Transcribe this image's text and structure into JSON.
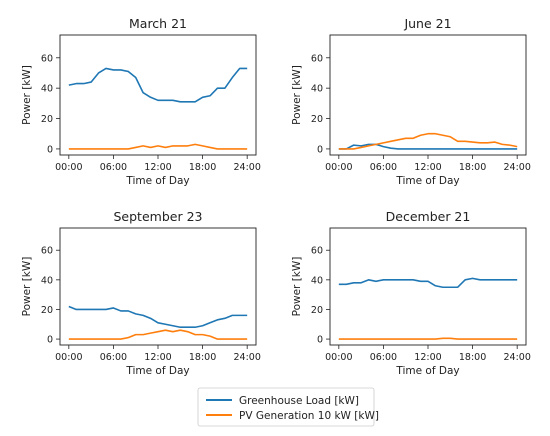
{
  "chart_data": [
    {
      "type": "line",
      "title": "March 21",
      "xlabel": "Time of Day",
      "ylabel": "Power [kW]",
      "xticks": [
        "00:00",
        "06:00",
        "12:00",
        "18:00",
        "24:00"
      ],
      "yticks": [
        "0",
        "20",
        "40",
        "60"
      ],
      "xlim": [
        0,
        24
      ],
      "ylim": [
        -4,
        75
      ],
      "x": [
        0,
        1,
        2,
        3,
        4,
        5,
        6,
        7,
        8,
        9,
        10,
        11,
        12,
        13,
        14,
        15,
        16,
        17,
        18,
        19,
        20,
        21,
        22,
        23,
        24
      ],
      "series": [
        {
          "name": "Greenhouse Load [kW]",
          "color": "#1f77b4",
          "values": [
            42,
            43,
            43,
            44,
            50,
            53,
            52,
            52,
            51,
            47,
            37,
            34,
            32,
            32,
            32,
            31,
            31,
            31,
            34,
            35,
            40,
            40,
            47,
            53,
            53
          ]
        },
        {
          "name": "PV Generation 10 kW [kW]",
          "color": "#ff7f0e",
          "values": [
            0,
            0,
            0,
            0,
            0,
            0,
            0,
            0,
            0,
            1,
            2,
            1,
            2,
            1,
            2,
            2,
            2,
            3,
            2,
            1,
            0,
            0,
            0,
            0,
            0
          ]
        }
      ]
    },
    {
      "type": "line",
      "title": "June 21",
      "xlabel": "Time of Day",
      "ylabel": "Power [kW]",
      "xticks": [
        "00:00",
        "06:00",
        "12:00",
        "18:00",
        "24:00"
      ],
      "yticks": [
        "0",
        "20",
        "40",
        "60"
      ],
      "xlim": [
        0,
        24
      ],
      "ylim": [
        -4,
        75
      ],
      "x": [
        0,
        1,
        2,
        3,
        4,
        5,
        6,
        7,
        8,
        9,
        10,
        11,
        12,
        13,
        14,
        15,
        16,
        17,
        18,
        19,
        20,
        21,
        22,
        23,
        24
      ],
      "series": [
        {
          "name": "Greenhouse Load [kW]",
          "color": "#1f77b4",
          "values": [
            0,
            0,
            2.5,
            2,
            3,
            3,
            1.5,
            0.5,
            0,
            0,
            0,
            0,
            0,
            0,
            0,
            0,
            0,
            0,
            0,
            0,
            0,
            0,
            0,
            0,
            0
          ]
        },
        {
          "name": "PV Generation 10 kW [kW]",
          "color": "#ff7f0e",
          "values": [
            0,
            0,
            0,
            1,
            2,
            3,
            4,
            5,
            6,
            7,
            7,
            9,
            10,
            10,
            9,
            8,
            5,
            5,
            4.5,
            4,
            4,
            4.5,
            3,
            2.5,
            1.5
          ]
        }
      ]
    },
    {
      "type": "line",
      "title": "September 23",
      "xlabel": "Time of Day",
      "ylabel": "Power [kW]",
      "xticks": [
        "00:00",
        "06:00",
        "12:00",
        "18:00",
        "24:00"
      ],
      "yticks": [
        "0",
        "20",
        "40",
        "60"
      ],
      "xlim": [
        0,
        24
      ],
      "ylim": [
        -4,
        75
      ],
      "x": [
        0,
        1,
        2,
        3,
        4,
        5,
        6,
        7,
        8,
        9,
        10,
        11,
        12,
        13,
        14,
        15,
        16,
        17,
        18,
        19,
        20,
        21,
        22,
        23,
        24
      ],
      "series": [
        {
          "name": "Greenhouse Load [kW]",
          "color": "#1f77b4",
          "values": [
            22,
            20,
            20,
            20,
            20,
            20,
            21,
            19,
            19,
            17,
            16,
            14,
            11,
            10,
            9,
            8,
            8,
            8,
            9,
            11,
            13,
            14,
            16,
            16,
            16
          ]
        },
        {
          "name": "PV Generation 10 kW [kW]",
          "color": "#ff7f0e",
          "values": [
            0,
            0,
            0,
            0,
            0,
            0,
            0,
            0,
            1,
            3,
            3,
            4,
            5,
            6,
            5,
            6,
            5,
            3,
            3,
            2,
            0,
            0,
            0,
            0,
            0
          ]
        }
      ]
    },
    {
      "type": "line",
      "title": "December 21",
      "xlabel": "Time of Day",
      "ylabel": "Power [kW]",
      "xticks": [
        "00:00",
        "06:00",
        "12:00",
        "18:00",
        "24:00"
      ],
      "yticks": [
        "0",
        "20",
        "40",
        "60"
      ],
      "xlim": [
        0,
        24
      ],
      "ylim": [
        -4,
        75
      ],
      "x": [
        0,
        1,
        2,
        3,
        4,
        5,
        6,
        7,
        8,
        9,
        10,
        11,
        12,
        13,
        14,
        15,
        16,
        17,
        18,
        19,
        20,
        21,
        22,
        23,
        24
      ],
      "series": [
        {
          "name": "Greenhouse Load [kW]",
          "color": "#1f77b4",
          "values": [
            37,
            37,
            38,
            38,
            40,
            39,
            40,
            40,
            40,
            40,
            40,
            39,
            39,
            36,
            35,
            35,
            35,
            40,
            41,
            40,
            40,
            40,
            40,
            40,
            40
          ]
        },
        {
          "name": "PV Generation 10 kW [kW]",
          "color": "#ff7f0e",
          "values": [
            0,
            0,
            0,
            0,
            0,
            0,
            0,
            0,
            0,
            0,
            0,
            0,
            0,
            0,
            0.5,
            0.5,
            0,
            0,
            0,
            0,
            0,
            0,
            0,
            0,
            0
          ]
        }
      ]
    }
  ],
  "legend": {
    "items": [
      {
        "label": "Greenhouse Load [kW]",
        "color": "#1f77b4"
      },
      {
        "label": "PV Generation 10 kW [kW]",
        "color": "#ff7f0e"
      }
    ],
    "placement": "bottom-center"
  },
  "grid": false
}
